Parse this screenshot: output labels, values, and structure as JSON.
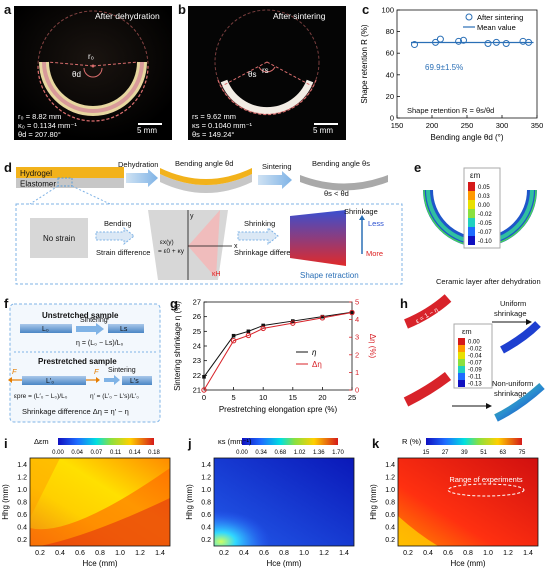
{
  "panels": {
    "a": {
      "label": "a",
      "title": "After dehydration",
      "arc_r_label": "r₀",
      "arc_theta_label": "θd",
      "stats": [
        "r₀ = 8.82 mm",
        "κ₀ = 0.1134 mm⁻¹",
        "θd = 207.80°"
      ],
      "scalebar": "5 mm"
    },
    "b": {
      "label": "b",
      "title": "After sintering",
      "arc_r_label": "rs",
      "arc_theta_label": "θs",
      "stats": [
        "rs = 9.62 mm",
        "κs = 0.1040 mm⁻¹",
        "θs = 149.24°"
      ],
      "scalebar": "5 mm"
    },
    "c": {
      "label": "c",
      "annotation": "69.9±1.5%",
      "formula": "Shape retention R = θs/θd"
    },
    "d": {
      "label": "d",
      "hydrogel": "Hydrogel",
      "elastomer": "Elastomer",
      "dehydration": "Dehydration",
      "bending_angle_d": "Bending angle θd",
      "sintering": "Sintering",
      "bending_angle_s": "Bending angle θs",
      "theta_cmp": "θs < θd",
      "no_strain": "No strain",
      "bending": "Bending",
      "strain_difference": "Strain difference",
      "shrinking": "Shrinking",
      "shrinkage_difference": "Shrinkage difference",
      "shrinkage": "Shrinkage",
      "less": "Less",
      "more": "More",
      "shape_retraction": "Shape retraction",
      "eps_x": "εx(y)",
      "eps_0": "= ε0 + κy",
      "kappa_H": "κH",
      "axis_x": "x",
      "axis_y": "y"
    },
    "e": {
      "label": "e",
      "legend_title": "εm",
      "legend_ticks": [
        "0.05",
        "0.03",
        "0.00",
        "-0.02",
        "-0.05",
        "-0.07",
        "-0.10"
      ],
      "caption": "Ceramic layer after dehydration"
    },
    "f": {
      "label": "f",
      "unstretched": "Unstretched sample",
      "L0": "L₀",
      "Ls": "Ls",
      "sintering1": "Sintering",
      "eta": "η = (L₀ − Ls)/L₀",
      "prestretched": "Prestretched sample",
      "F1": "F",
      "F2": "F",
      "L0p": "L′₀",
      "Lsp": "L′s",
      "sintering2": "Sintering",
      "eps_pre": "εpre = (L′₀ − L₀)/L₀",
      "eta_p": "η′ = (L′₀ − L′s)/L′₀",
      "shrink_diff": "Shrinkage difference  Δη = η′ − η"
    },
    "g": {
      "label": "g"
    },
    "h": {
      "label": "h",
      "uniform": "Uniform shrinkage",
      "nonuniform": "Non-uniform shrinkage",
      "legend_title": "εm",
      "legend_ticks": [
        "0.00",
        "-0.02",
        "-0.04",
        "-0.07",
        "-0.09",
        "-0.11",
        "-0.13"
      ],
      "curve_label": "ε = 1 − η"
    },
    "i": {
      "label": "i",
      "cb_title": "Δεm",
      "cb_ticks": [
        "0.00",
        "0.04",
        "0.07",
        "0.11",
        "0.14",
        "0.18"
      ],
      "xlabel": "Hce (mm)",
      "ylabel": "Hhg (mm)"
    },
    "j": {
      "label": "j",
      "cb_title": "κs (mm⁻¹)",
      "cb_ticks": [
        "0.00",
        "0.34",
        "0.68",
        "1.02",
        "1.36",
        "1.70"
      ],
      "xlabel": "Hce (mm)",
      "ylabel": "Hhg (mm)"
    },
    "k": {
      "label": "k",
      "cb_title": "R (%)",
      "cb_ticks": [
        "15",
        "27",
        "39",
        "51",
        "63",
        "75"
      ],
      "range_label": "Range of experiments",
      "xlabel": "Hce (mm)",
      "ylabel": "Hhg (mm)"
    }
  },
  "chart_data": [
    {
      "id": "c",
      "type": "scatter",
      "xlabel": "Bending angle θd (°)",
      "ylabel": "Shape retention R (%)",
      "xlim": [
        150,
        350
      ],
      "ylim": [
        0,
        100
      ],
      "xticks": [
        150,
        200,
        250,
        300,
        350
      ],
      "yticks": [
        0,
        20,
        40,
        60,
        80,
        100
      ],
      "series": [
        {
          "name": "After sintering",
          "x": [
            175,
            205,
            212,
            238,
            245,
            280,
            292,
            306,
            330,
            338
          ],
          "y": [
            68,
            70,
            73,
            71,
            72,
            69,
            70,
            69,
            71,
            70
          ]
        },
        {
          "name": "Mean value",
          "x": [
            170,
            345
          ],
          "y": [
            69.9,
            69.9
          ]
        }
      ],
      "legend": "top-right"
    },
    {
      "id": "g",
      "type": "line",
      "xlabel": "Prestretching elongation εpre (%)",
      "ylabel": "Sintering shrinkage η (%)",
      "y2label": "Δη (%)",
      "xlim": [
        0,
        25
      ],
      "ylim": [
        21,
        27
      ],
      "y2lim": [
        0,
        5
      ],
      "xticks": [
        0,
        5,
        10,
        15,
        20,
        25
      ],
      "yticks": [
        21,
        22,
        23,
        24,
        25,
        26,
        27
      ],
      "y2ticks": [
        0,
        1,
        2,
        3,
        4,
        5
      ],
      "series": [
        {
          "name": "η",
          "axis": "left",
          "x": [
            0,
            5,
            7.5,
            10,
            15,
            20,
            25
          ],
          "y": [
            21.9,
            24.7,
            25.0,
            25.4,
            25.7,
            26.0,
            26.3
          ]
        },
        {
          "name": "Δη",
          "axis": "right",
          "x": [
            0,
            5,
            7.5,
            10,
            15,
            20,
            25
          ],
          "y": [
            0.0,
            2.8,
            3.1,
            3.5,
            3.8,
            4.1,
            4.4
          ]
        }
      ],
      "legend": "center-right"
    }
  ]
}
